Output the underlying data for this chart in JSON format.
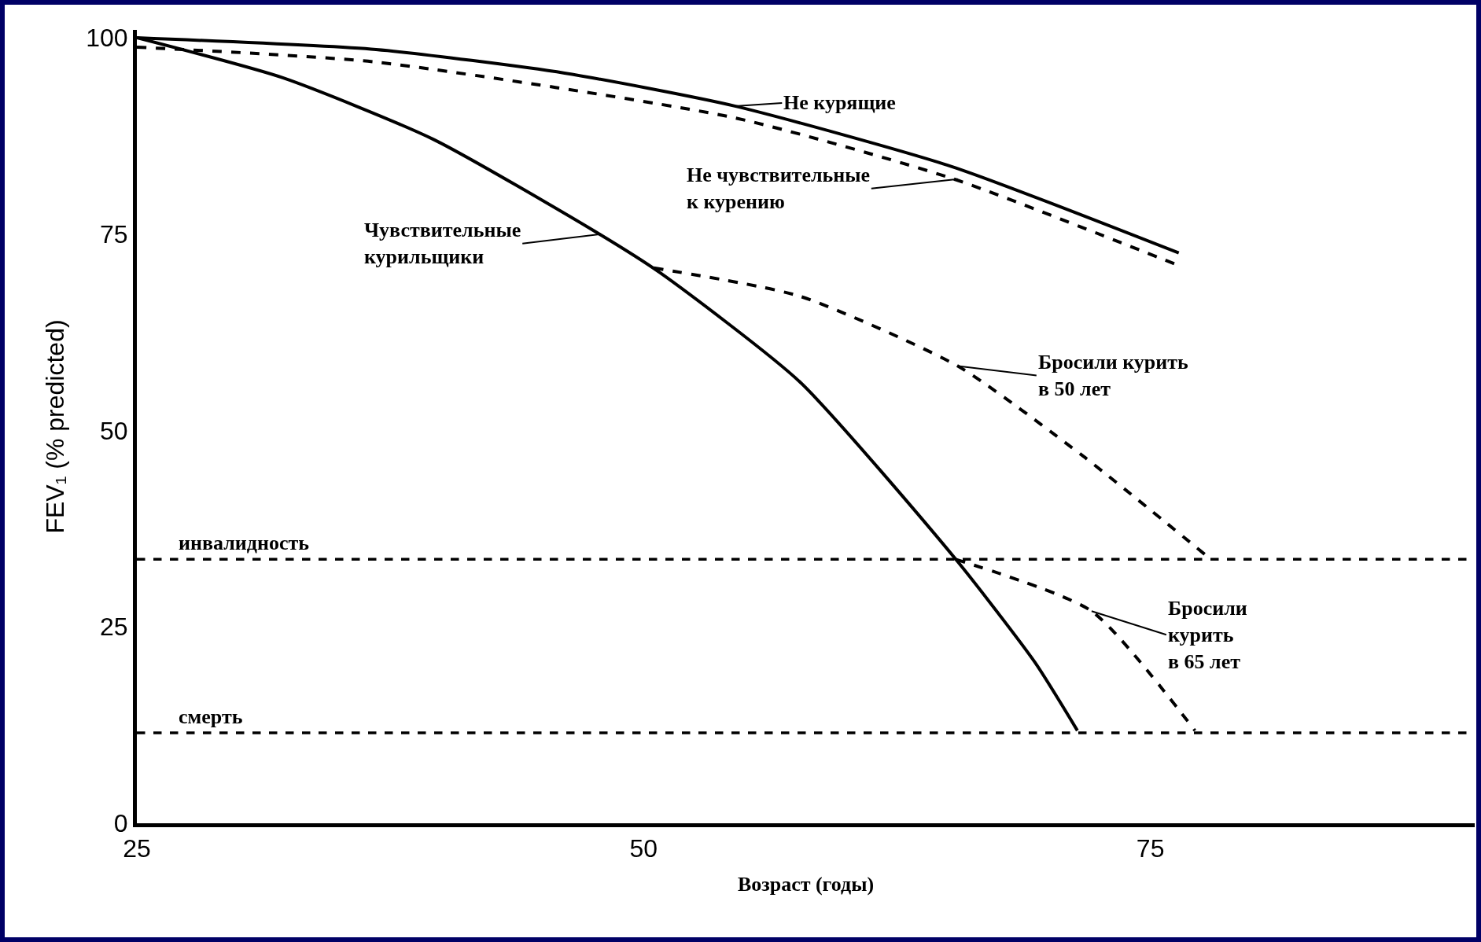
{
  "chart_data": {
    "type": "line",
    "xlabel": "Возраст (годы)",
    "ylabel": "FEV₁ (% predicted)",
    "xlim": [
      25,
      91
    ],
    "ylim": [
      0,
      101
    ],
    "xticks": [
      25,
      50,
      75
    ],
    "yticks": [
      0,
      25,
      50,
      75,
      100
    ],
    "grid": false,
    "marker": "none",
    "series": [
      {
        "color": "#000000",
        "line_style": "solid",
        "x": [
          25,
          36.8,
          46.1,
          54.5,
          65.2,
          76.4
        ],
        "values": [
          100,
          98.5,
          95.5,
          91.3,
          83.6,
          72.6
        ]
      },
      {
        "color": "#000000",
        "line_style": "dashed",
        "x": [
          25,
          36.8,
          54.5,
          65.2,
          76.4
        ],
        "values": [
          98.8,
          96.9,
          89.8,
          82.1,
          71
        ]
      },
      {
        "color": "#000000",
        "line_style": "solid",
        "x": [
          25,
          32.2,
          39.6,
          47.5,
          50.8,
          57.7,
          65.4,
          69.3,
          71.4
        ],
        "values": [
          100,
          94.9,
          87.1,
          75.5,
          70.1,
          56.2,
          33.6,
          20.5,
          11.8
        ]
      },
      {
        "color": "#000000",
        "line_style": "dashed",
        "x": [
          50.5,
          57.7,
          65.5,
          71.7,
          77.7
        ],
        "values": [
          70.7,
          67.1,
          58.2,
          46.7,
          34.2
        ]
      },
      {
        "color": "#000000",
        "line_style": "dashed",
        "x": [
          65.4,
          72.1,
          77.2
        ],
        "values": [
          33.6,
          27,
          11.8
        ]
      }
    ],
    "ref_lines": [
      {
        "axis": "y",
        "value": 33.6,
        "label": "инвалидность",
        "color": "#000000",
        "line_style": "dashed"
      },
      {
        "axis": "y",
        "value": 11.5,
        "label": "смерть",
        "color": "#000000",
        "line_style": "dashed"
      }
    ],
    "annotations": [
      {
        "text": "Не курящие",
        "x": 54.5,
        "y": 91.3
      },
      {
        "text": "Не чувствительные\nк курению",
        "x": 65.5,
        "y": 82
      },
      {
        "text": "Чувствительные\nкурильщики",
        "x": 47.9,
        "y": 75
      },
      {
        "text": "Бросили курить\nв 50 лет",
        "x": 65.5,
        "y": 58.2
      },
      {
        "text": "Бросили\nкурить\nв 65 лет",
        "x": 72.1,
        "y": 27
      }
    ]
  }
}
